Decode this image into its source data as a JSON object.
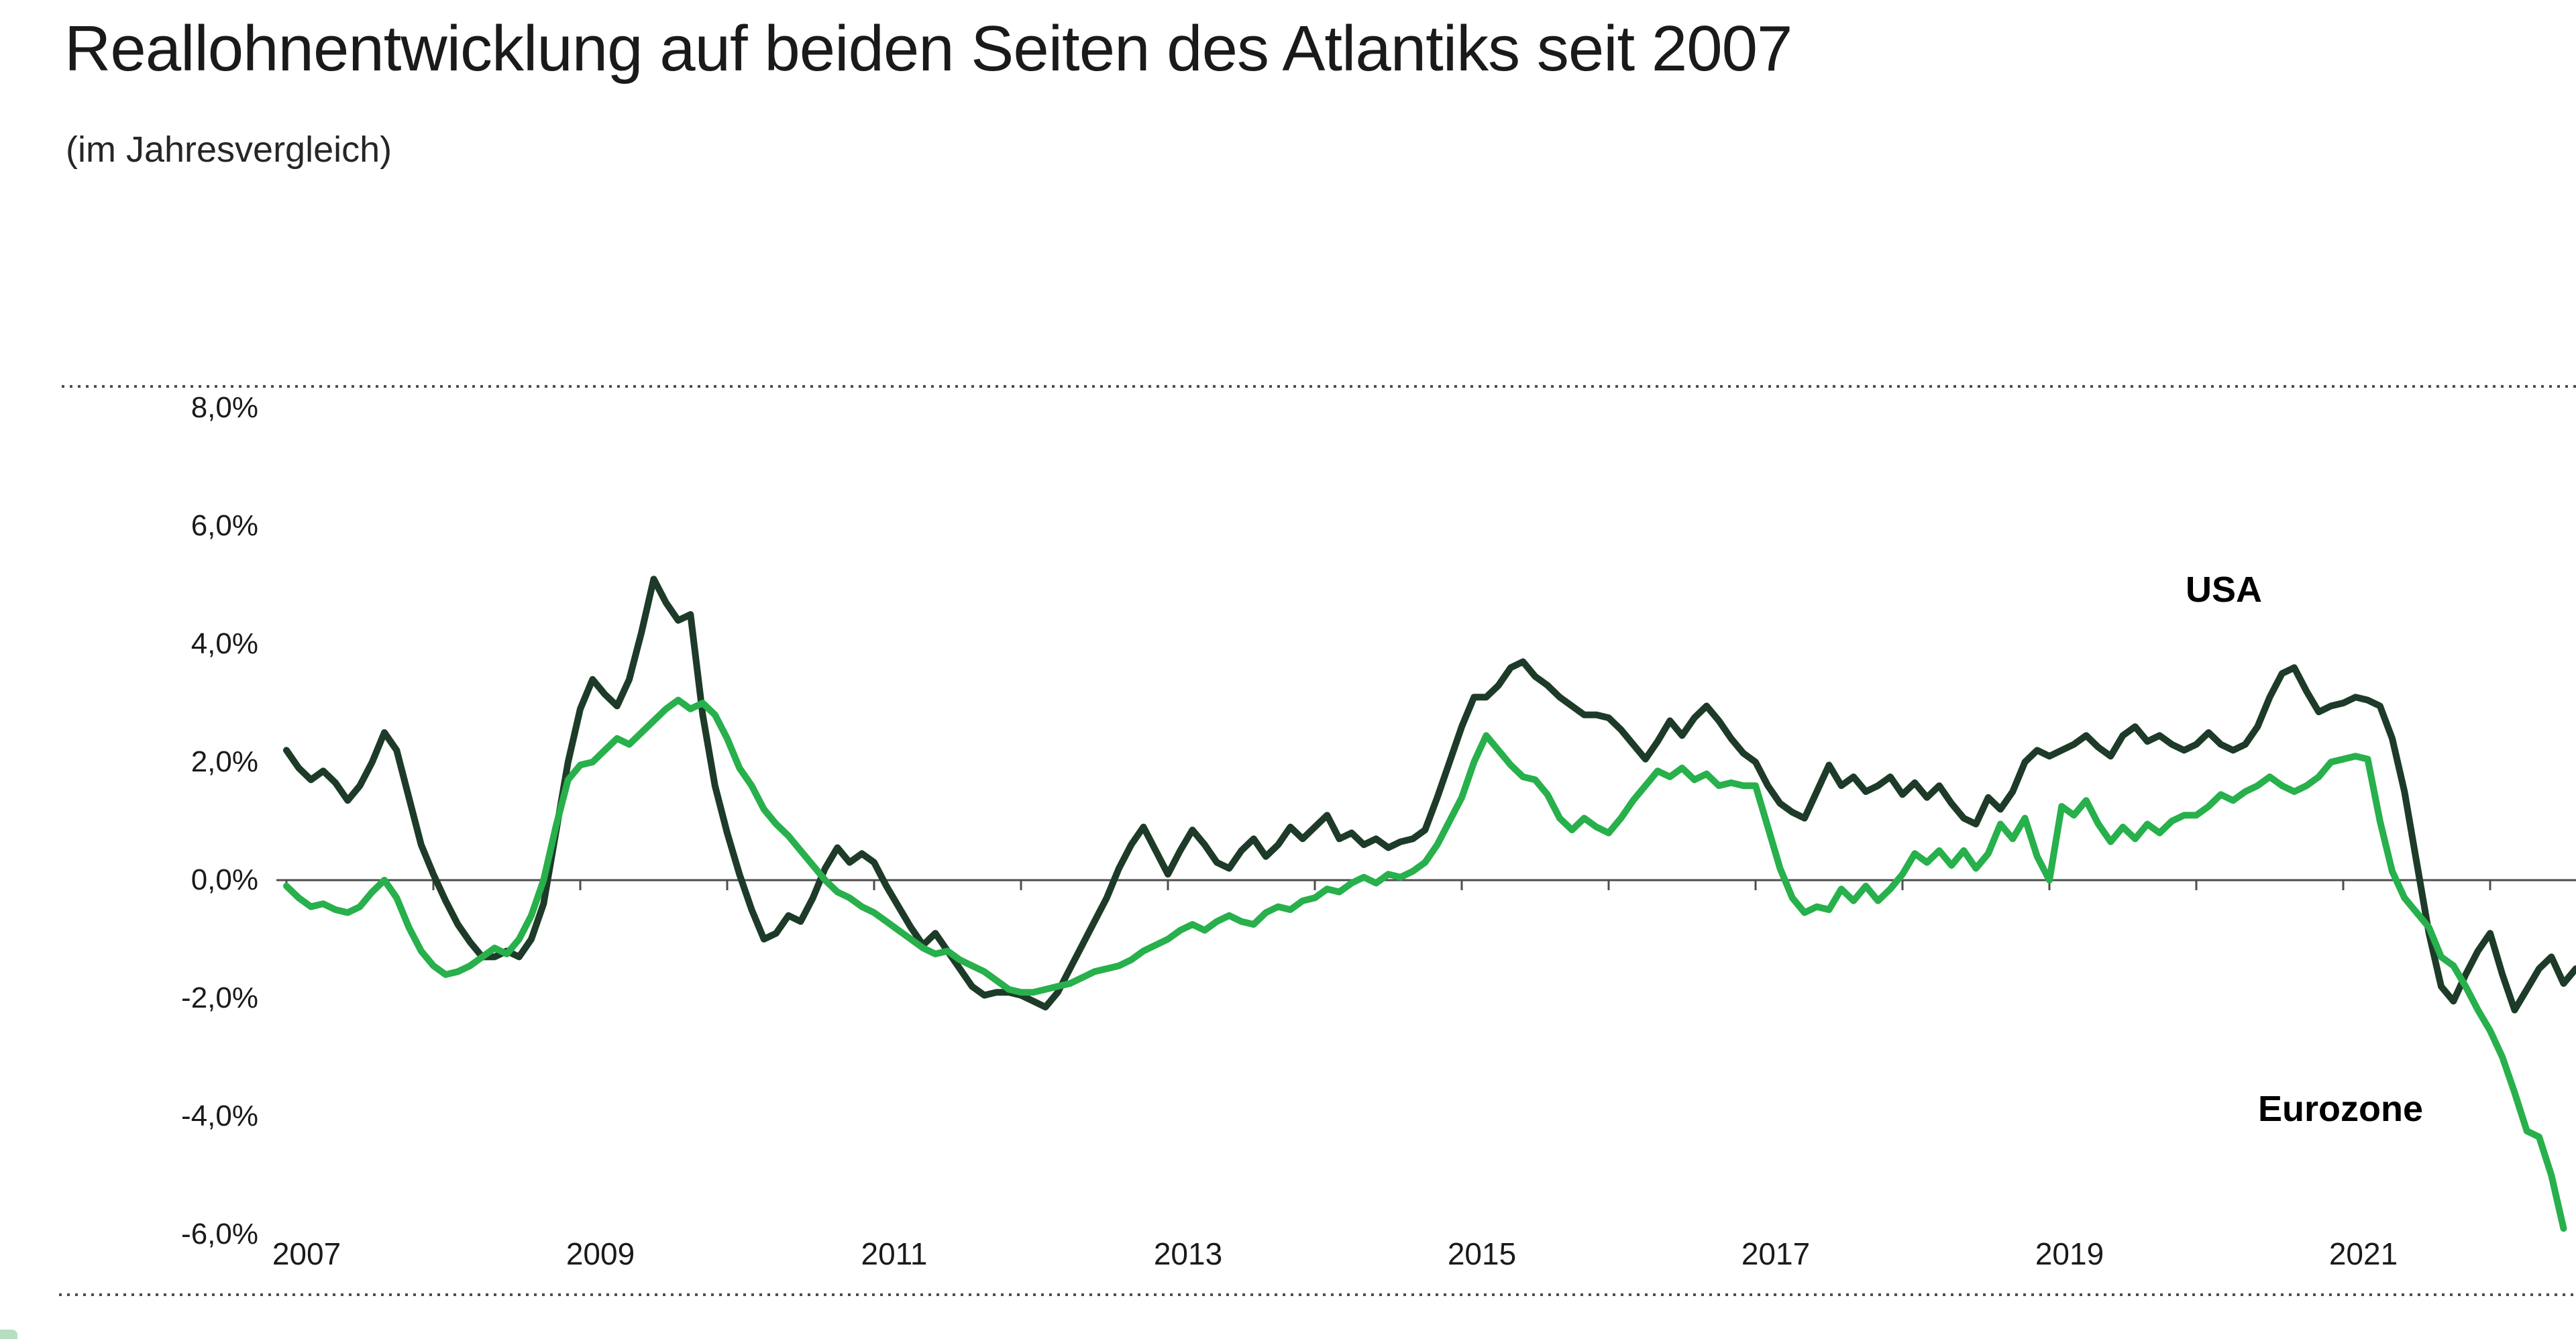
{
  "header": {
    "title": "Reallohnentwicklung auf beiden Seiten des Atlantiks seit 2007",
    "subtitle": "(im Jahresvergleich)"
  },
  "colors": {
    "usa_line": "#1d3b28",
    "eurozone_line": "#27b04b",
    "axis": "#4d4d4d",
    "text": "#1a1a1a",
    "background": "#ffffff"
  },
  "chart_data": {
    "type": "line",
    "title": "Reallohnentwicklung auf beiden Seiten des Atlantiks seit 2007",
    "subtitle": "(im Jahresvergleich)",
    "xlabel": "",
    "ylabel": "",
    "unit": "percent, year-over-year",
    "frequency": "monthly",
    "start": "2007-01",
    "grid": false,
    "legend_position": "inline-labels",
    "ylim": [
      -6.5,
      9.0
    ],
    "y_tick_values": [
      8,
      6,
      4,
      2,
      0,
      -2,
      -4,
      -6
    ],
    "y_tick_labels": [
      "8,0%",
      "6,0%",
      "4,0%",
      "2,0%",
      "0,0%",
      "-2,0%",
      "-4,0%",
      "-6,0%"
    ],
    "x_tick_label_years": [
      "2007",
      "2009",
      "2011",
      "2013",
      "2015",
      "2017",
      "2019",
      "2021"
    ],
    "series": [
      {
        "name": "USA",
        "color": "#1d3b28",
        "values": [
          2.2,
          1.9,
          1.7,
          1.85,
          1.65,
          1.35,
          1.6,
          2.0,
          2.5,
          2.2,
          1.4,
          0.6,
          0.1,
          -0.35,
          -0.75,
          -1.05,
          -1.3,
          -1.3,
          -1.2,
          -1.3,
          -1.0,
          -0.4,
          0.8,
          2.0,
          2.9,
          3.4,
          3.15,
          2.95,
          3.4,
          4.2,
          5.1,
          4.7,
          4.4,
          4.5,
          2.8,
          1.6,
          0.8,
          0.1,
          -0.5,
          -1.0,
          -0.9,
          -0.6,
          -0.7,
          -0.3,
          0.2,
          0.55,
          0.3,
          0.45,
          0.3,
          -0.1,
          -0.45,
          -0.8,
          -1.1,
          -0.9,
          -1.2,
          -1.5,
          -1.8,
          -1.95,
          -1.9,
          -1.9,
          -1.95,
          -2.05,
          -2.15,
          -1.9,
          -1.5,
          -1.1,
          -0.7,
          -0.3,
          0.2,
          0.6,
          0.9,
          0.5,
          0.1,
          0.5,
          0.85,
          0.6,
          0.3,
          0.2,
          0.5,
          0.7,
          0.4,
          0.6,
          0.9,
          0.7,
          0.9,
          1.1,
          0.7,
          0.8,
          0.6,
          0.7,
          0.55,
          0.65,
          0.7,
          0.85,
          1.4,
          2.0,
          2.6,
          3.1,
          3.1,
          3.3,
          3.6,
          3.7,
          3.45,
          3.3,
          3.1,
          2.95,
          2.8,
          2.8,
          2.75,
          2.55,
          2.3,
          2.05,
          2.35,
          2.7,
          2.45,
          2.75,
          2.95,
          2.7,
          2.4,
          2.15,
          2.0,
          1.6,
          1.3,
          1.15,
          1.05,
          1.5,
          1.95,
          1.6,
          1.75,
          1.5,
          1.6,
          1.75,
          1.45,
          1.65,
          1.4,
          1.6,
          1.3,
          1.05,
          0.95,
          1.4,
          1.2,
          1.5,
          2.0,
          2.2,
          2.1,
          2.2,
          2.3,
          2.45,
          2.25,
          2.1,
          2.45,
          2.6,
          2.35,
          2.45,
          2.3,
          2.2,
          2.3,
          2.5,
          2.3,
          2.2,
          2.3,
          2.6,
          3.1,
          3.5,
          3.6,
          3.2,
          2.85,
          2.95,
          3.0,
          3.1,
          3.05,
          2.95,
          2.4,
          1.5,
          0.3,
          -0.9,
          -1.8,
          -2.05,
          -1.6,
          -1.2,
          -0.9,
          -1.6,
          -2.2,
          -1.85,
          -1.5,
          -1.3,
          -1.75,
          -1.5
        ]
      },
      {
        "name": "Eurozone",
        "color": "#27b04b",
        "values": [
          -0.1,
          -0.3,
          -0.45,
          -0.4,
          -0.5,
          -0.55,
          -0.45,
          -0.2,
          0.0,
          -0.3,
          -0.8,
          -1.2,
          -1.45,
          -1.6,
          -1.55,
          -1.45,
          -1.3,
          -1.15,
          -1.25,
          -1.0,
          -0.6,
          0.0,
          0.9,
          1.7,
          1.95,
          2.0,
          2.2,
          2.4,
          2.3,
          2.5,
          2.7,
          2.9,
          3.05,
          2.9,
          3.0,
          2.8,
          2.4,
          1.9,
          1.6,
          1.2,
          0.95,
          0.75,
          0.5,
          0.25,
          0.0,
          -0.2,
          -0.3,
          -0.45,
          -0.55,
          -0.7,
          -0.85,
          -1.0,
          -1.15,
          -1.25,
          -1.2,
          -1.35,
          -1.45,
          -1.55,
          -1.7,
          -1.85,
          -1.9,
          -1.9,
          -1.85,
          -1.8,
          -1.75,
          -1.65,
          -1.55,
          -1.5,
          -1.45,
          -1.35,
          -1.2,
          -1.1,
          -1.0,
          -0.85,
          -0.75,
          -0.85,
          -0.7,
          -0.6,
          -0.7,
          -0.75,
          -0.55,
          -0.45,
          -0.5,
          -0.35,
          -0.3,
          -0.15,
          -0.2,
          -0.05,
          0.05,
          -0.05,
          0.1,
          0.05,
          0.15,
          0.3,
          0.6,
          1.0,
          1.4,
          2.0,
          2.45,
          2.2,
          1.95,
          1.75,
          1.7,
          1.45,
          1.05,
          0.85,
          1.05,
          0.9,
          0.8,
          1.05,
          1.35,
          1.6,
          1.85,
          1.75,
          1.9,
          1.7,
          1.8,
          1.6,
          1.65,
          1.6,
          1.6,
          0.9,
          0.2,
          -0.3,
          -0.55,
          -0.45,
          -0.5,
          -0.15,
          -0.35,
          -0.1,
          -0.35,
          -0.15,
          0.1,
          0.45,
          0.3,
          0.5,
          0.25,
          0.5,
          0.2,
          0.45,
          0.95,
          0.7,
          1.05,
          0.4,
          0.0,
          1.25,
          1.1,
          1.35,
          0.95,
          0.65,
          0.9,
          0.7,
          0.95,
          0.8,
          1.0,
          1.1,
          1.1,
          1.25,
          1.45,
          1.35,
          1.5,
          1.6,
          1.75,
          1.6,
          1.5,
          1.6,
          1.75,
          2.0,
          2.05,
          2.1,
          2.05,
          1.0,
          0.15,
          -0.3,
          -0.55,
          -0.8,
          -1.3,
          -1.45,
          -1.8,
          -2.2,
          -2.55,
          -3.0,
          -3.6,
          -4.25,
          -4.35,
          -5.0,
          -5.9
        ]
      }
    ]
  }
}
